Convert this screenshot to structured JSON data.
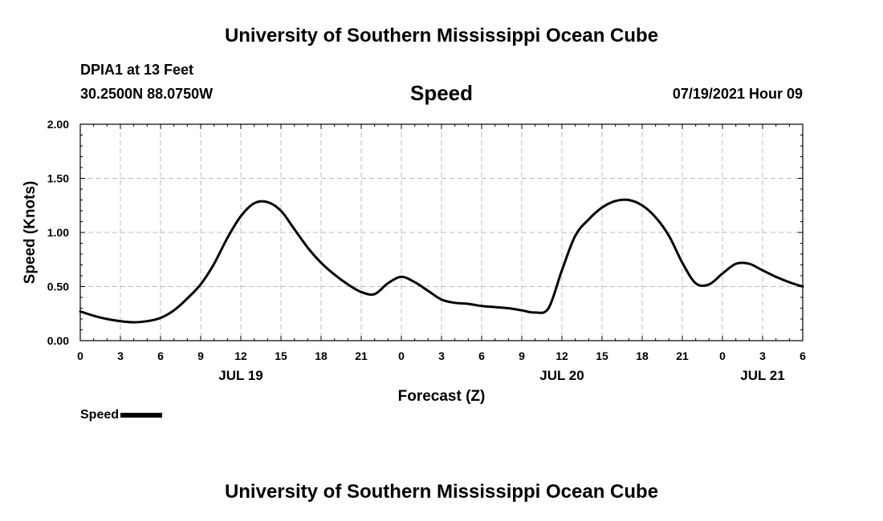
{
  "header": {
    "top_title": "University of Southern Mississippi Ocean Cube",
    "station": "DPIA1 at 13 Feet",
    "coords": "30.2500N  88.0750W",
    "datetime": "07/19/2021 Hour 09",
    "bottom_title": "University of Southern Mississippi Ocean Cube"
  },
  "chart_data": {
    "type": "line",
    "title": "Speed",
    "xlabel": "Forecast (Z)",
    "ylabel": "Speed (Knots)",
    "x_unit": "hours from 07/19/2021 00Z",
    "xlim": [
      0,
      54
    ],
    "ylim": [
      0,
      2
    ],
    "yticks": [
      "0.00",
      "0.50",
      "1.00",
      "1.50",
      "2.00"
    ],
    "xtick_labels": [
      "0",
      "3",
      "6",
      "9",
      "12",
      "15",
      "18",
      "21",
      "0",
      "3",
      "6",
      "9",
      "12",
      "15",
      "18",
      "21",
      "0",
      "3",
      "6"
    ],
    "date_labels": [
      {
        "label": "JUL 19",
        "hour": 12
      },
      {
        "label": "JUL 20",
        "hour": 36
      },
      {
        "label": "JUL 21",
        "hour": 51
      }
    ],
    "grid": true,
    "legend": "bottom-left",
    "series": [
      {
        "name": "Speed",
        "color": "#000000",
        "x": [
          0,
          1,
          2,
          3,
          4,
          5,
          6,
          7,
          8,
          9,
          10,
          11,
          12,
          13,
          14,
          15,
          16,
          17,
          18,
          19,
          20,
          21,
          22,
          23,
          24,
          25,
          26,
          27,
          28,
          29,
          30,
          31,
          32,
          33,
          34,
          35,
          36,
          37,
          38,
          39,
          40,
          41,
          42,
          43,
          44,
          45,
          46,
          47,
          48,
          49,
          50,
          51,
          52,
          53,
          54
        ],
        "values": [
          0.27,
          0.23,
          0.2,
          0.18,
          0.17,
          0.18,
          0.21,
          0.28,
          0.39,
          0.52,
          0.71,
          0.95,
          1.15,
          1.27,
          1.28,
          1.2,
          1.03,
          0.86,
          0.72,
          0.61,
          0.52,
          0.45,
          0.43,
          0.53,
          0.59,
          0.54,
          0.46,
          0.38,
          0.35,
          0.34,
          0.32,
          0.31,
          0.3,
          0.28,
          0.26,
          0.3,
          0.65,
          0.97,
          1.12,
          1.23,
          1.29,
          1.3,
          1.25,
          1.14,
          0.97,
          0.72,
          0.53,
          0.52,
          0.62,
          0.71,
          0.71,
          0.65,
          0.59,
          0.54,
          0.5
        ]
      }
    ]
  },
  "legend": {
    "label": "Speed"
  }
}
